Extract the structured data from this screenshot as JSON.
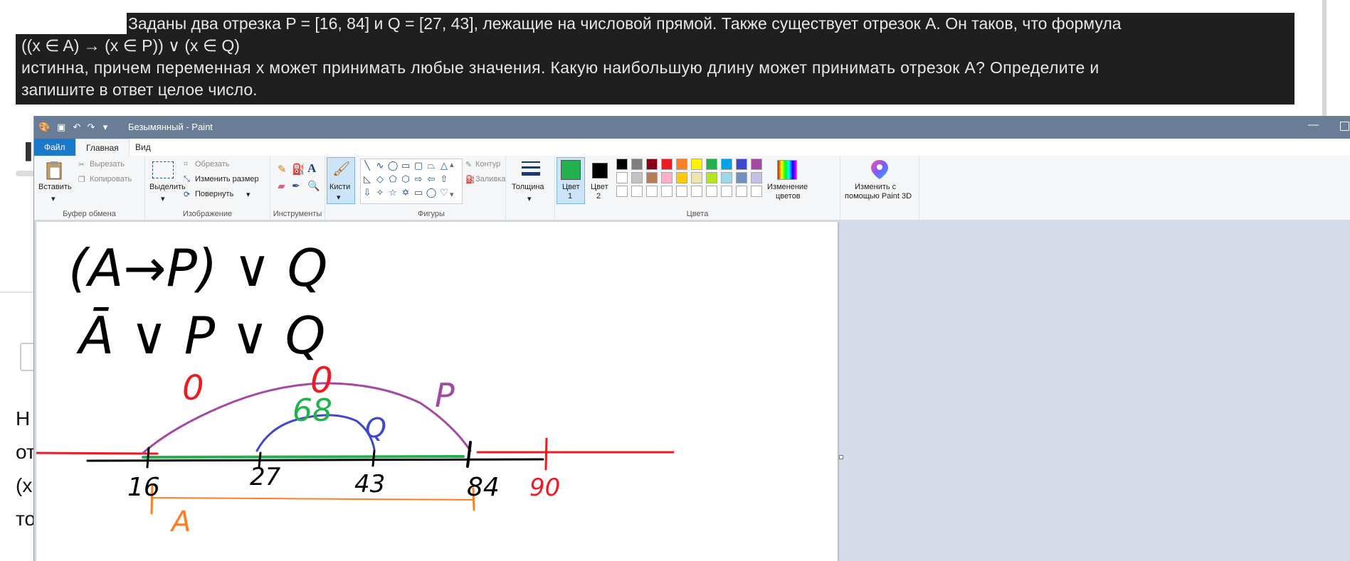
{
  "question": {
    "line1": "Заданы два отрезка P = [16, 84] и Q = [27, 43], лежащие на числовой прямой. Также существует отрезок A. Он таков, что формула",
    "line2": "((x ∈ A) → (x ∈ P)) ∨ (x ∈ Q)",
    "line3": "истинна, причем переменная x может принимать любые значения. Какую наибольшую длину может принимать отрезок A? Определите и",
    "line4": "запишите в ответ целое число."
  },
  "background": {
    "frag1": "Н",
    "frag2": "от",
    "frag3": "(х",
    "frag4": "то"
  },
  "paint": {
    "title": "Безымянный - Paint",
    "tabs": {
      "file": "Файл",
      "home": "Главная",
      "view": "Вид"
    },
    "groups": {
      "clipboard": "Буфер обмена",
      "image": "Изображение",
      "tools": "Инструменты",
      "shapes": "Фигуры",
      "colors": "Цвета"
    },
    "buttons": {
      "paste": "Вставить",
      "cut": "Вырезать",
      "copy": "Копировать",
      "select": "Выделить",
      "crop": "Обрезать",
      "resize": "Изменить размер",
      "rotate": "Повернуть",
      "brushes": "Кисти",
      "outline": "Контур",
      "fill": "Заливка",
      "size": "Толщина",
      "color1_a": "Цвет",
      "color1_b": "1",
      "color2_a": "Цвет",
      "color2_b": "2",
      "edit_colors_a": "Изменение",
      "edit_colors_b": "цветов",
      "paint3d_a": "Изменить с",
      "paint3d_b": "помощью Paint 3D"
    },
    "colors": {
      "color1": "#22b14c",
      "color2": "#000000",
      "palette_row1": [
        "#000000",
        "#7f7f7f",
        "#880015",
        "#ed1c24",
        "#ff7f27",
        "#fff200",
        "#22b14c",
        "#00a2e8",
        "#3f48cc",
        "#a349a4"
      ],
      "palette_row2": [
        "#ffffff",
        "#c3c3c3",
        "#b97a57",
        "#ffaec9",
        "#ffc90e",
        "#efe4b0",
        "#b5e61d",
        "#99d9ea",
        "#7092be",
        "#c8bfe7"
      ]
    }
  },
  "sketch": {
    "formula1": "(A→P) ∨ Q",
    "formula2": "Ā ∨ P ∨ Q",
    "zero1": "0",
    "zero2": "0",
    "label_p": "P",
    "label_q": "Q",
    "label_68": "68",
    "label_a": "A",
    "tick16": "16",
    "tick27": "27",
    "tick43": "43",
    "tick84": "84",
    "tick90": "90"
  }
}
